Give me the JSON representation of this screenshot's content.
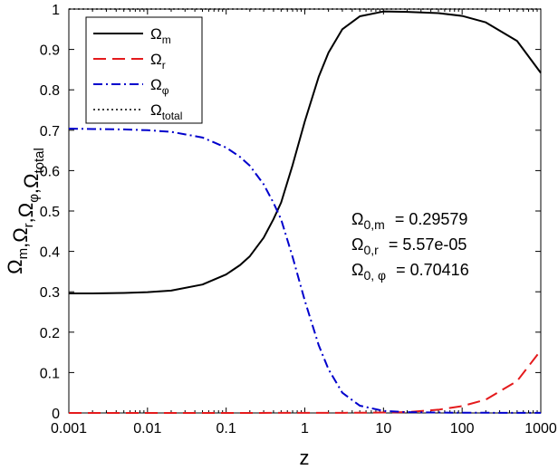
{
  "chart_data": {
    "type": "line",
    "xscale": "log",
    "xlim": [
      0.001,
      1000
    ],
    "ylim": [
      0,
      1
    ],
    "xticks": [
      0.001,
      0.01,
      0.1,
      1,
      10,
      100,
      1000
    ],
    "xtick_labels": [
      "0.001",
      "0.01",
      "0.1",
      "1",
      "10",
      "100",
      "1000"
    ],
    "yticks": [
      0,
      0.1,
      0.2,
      0.3,
      0.4,
      0.5,
      0.6,
      0.7,
      0.8,
      0.9,
      1
    ],
    "ytick_labels": [
      "0",
      "0.1",
      "0.2",
      "0.3",
      "0.4",
      "0.5",
      "0.6",
      "0.7",
      "0.8",
      "0.9",
      "1"
    ],
    "xlabel": "z",
    "ylabel": {
      "parts": [
        {
          "t": "Ω",
          "sub": "m"
        },
        {
          "t": ",Ω",
          "sub": "r"
        },
        {
          "t": ",Ω",
          "sub": "φ"
        },
        {
          "t": ",Ω",
          "sub": "total"
        }
      ]
    },
    "grid": false,
    "legend_position": "top-left",
    "series": [
      {
        "name": "Ω",
        "name_sub": "m",
        "color": "#000000",
        "dash": "solid",
        "x": [
          0.001,
          0.002,
          0.005,
          0.01,
          0.02,
          0.05,
          0.1,
          0.15,
          0.2,
          0.3,
          0.4,
          0.5,
          0.7,
          1,
          1.5,
          2,
          3,
          5,
          10,
          20,
          50,
          100,
          200,
          500,
          1000
        ],
        "y": [
          0.296,
          0.296,
          0.297,
          0.299,
          0.303,
          0.318,
          0.343,
          0.366,
          0.388,
          0.434,
          0.48,
          0.521,
          0.614,
          0.722,
          0.832,
          0.892,
          0.95,
          0.982,
          0.994,
          0.993,
          0.99,
          0.983,
          0.967,
          0.921,
          0.842
        ]
      },
      {
        "name": "Ω",
        "name_sub": "r",
        "color": "#e41a1c",
        "dash": "long-dash",
        "x": [
          0.001,
          0.1,
          1,
          5,
          10,
          20,
          50,
          100,
          200,
          500,
          1000
        ],
        "y": [
          0.0001,
          0.0001,
          0.0002,
          0.0005,
          0.001,
          0.002,
          0.008,
          0.017,
          0.033,
          0.079,
          0.155
        ]
      },
      {
        "name": "Ω",
        "name_sub": "φ",
        "color": "#0000cc",
        "dash": "dash-dot",
        "x": [
          0.001,
          0.002,
          0.005,
          0.01,
          0.02,
          0.05,
          0.1,
          0.15,
          0.2,
          0.3,
          0.4,
          0.5,
          0.7,
          1,
          1.5,
          2,
          3,
          5,
          10,
          20,
          50,
          100,
          1000
        ],
        "y": [
          0.704,
          0.703,
          0.702,
          0.7,
          0.696,
          0.682,
          0.657,
          0.634,
          0.612,
          0.566,
          0.52,
          0.479,
          0.386,
          0.278,
          0.168,
          0.108,
          0.05,
          0.018,
          0.005,
          0.002,
          0.001,
          0.0005,
          0.0003
        ]
      },
      {
        "name": "Ω",
        "name_sub": "total",
        "color": "#000000",
        "dash": "dotted",
        "x": [
          0.001,
          1000
        ],
        "y": [
          1,
          1
        ]
      }
    ],
    "annotations": [
      {
        "t": "Ω",
        "sub": "0,m",
        "value": "= 0.29579"
      },
      {
        "t": "Ω",
        "sub": "0,r",
        "value": "= 5.57e-05"
      },
      {
        "t": "Ω",
        "sub": "0, φ",
        "value": "= 0.70416"
      }
    ]
  }
}
